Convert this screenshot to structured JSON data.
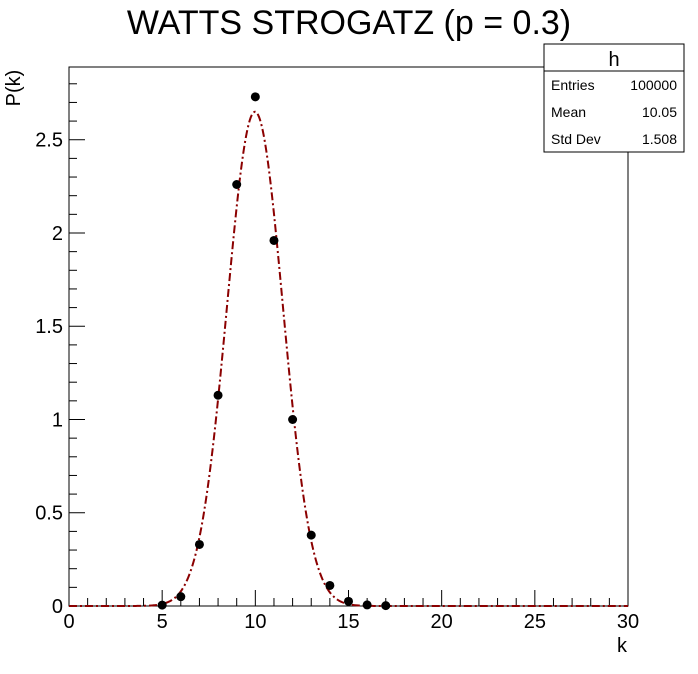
{
  "chart_data": {
    "type": "scatter",
    "title": "WATTS STROGATZ (p = 0.3)",
    "xlabel": "k",
    "ylabel": "P(k)",
    "xlim": [
      0,
      30
    ],
    "ylim": [
      0,
      2.89
    ],
    "x_ticks": [
      0,
      5,
      10,
      15,
      20,
      25,
      30
    ],
    "x_tick_labels": [
      "0",
      "5",
      "10",
      "15",
      "20",
      "25",
      "30"
    ],
    "y_ticks": [
      0,
      0.5,
      1,
      1.5,
      2,
      2.5
    ],
    "y_tick_labels": [
      "0",
      "0.5",
      "1",
      "1.5",
      "2",
      "2.5"
    ],
    "grid": false,
    "marker_color": "#000000",
    "fit_color": "#8b0000",
    "series": [
      {
        "style": "points",
        "x": [
          5,
          6,
          7,
          8,
          9,
          10,
          11,
          12,
          13,
          14,
          15,
          16,
          17
        ],
        "y": [
          0.005,
          0.05,
          0.33,
          1.13,
          2.26,
          2.73,
          1.96,
          1.0,
          0.38,
          0.11,
          0.025,
          0.006,
          0.002
        ]
      },
      {
        "style": "fit-curve",
        "model": "gaussian",
        "amplitude": 2.65,
        "mean": 9.98,
        "sigma": 1.5
      }
    ],
    "stats_box": {
      "title": "h",
      "rows": [
        {
          "label": "Entries",
          "value": "100000"
        },
        {
          "label": "Mean",
          "value": "10.05"
        },
        {
          "label": "Std Dev",
          "value": "1.508"
        }
      ]
    }
  }
}
